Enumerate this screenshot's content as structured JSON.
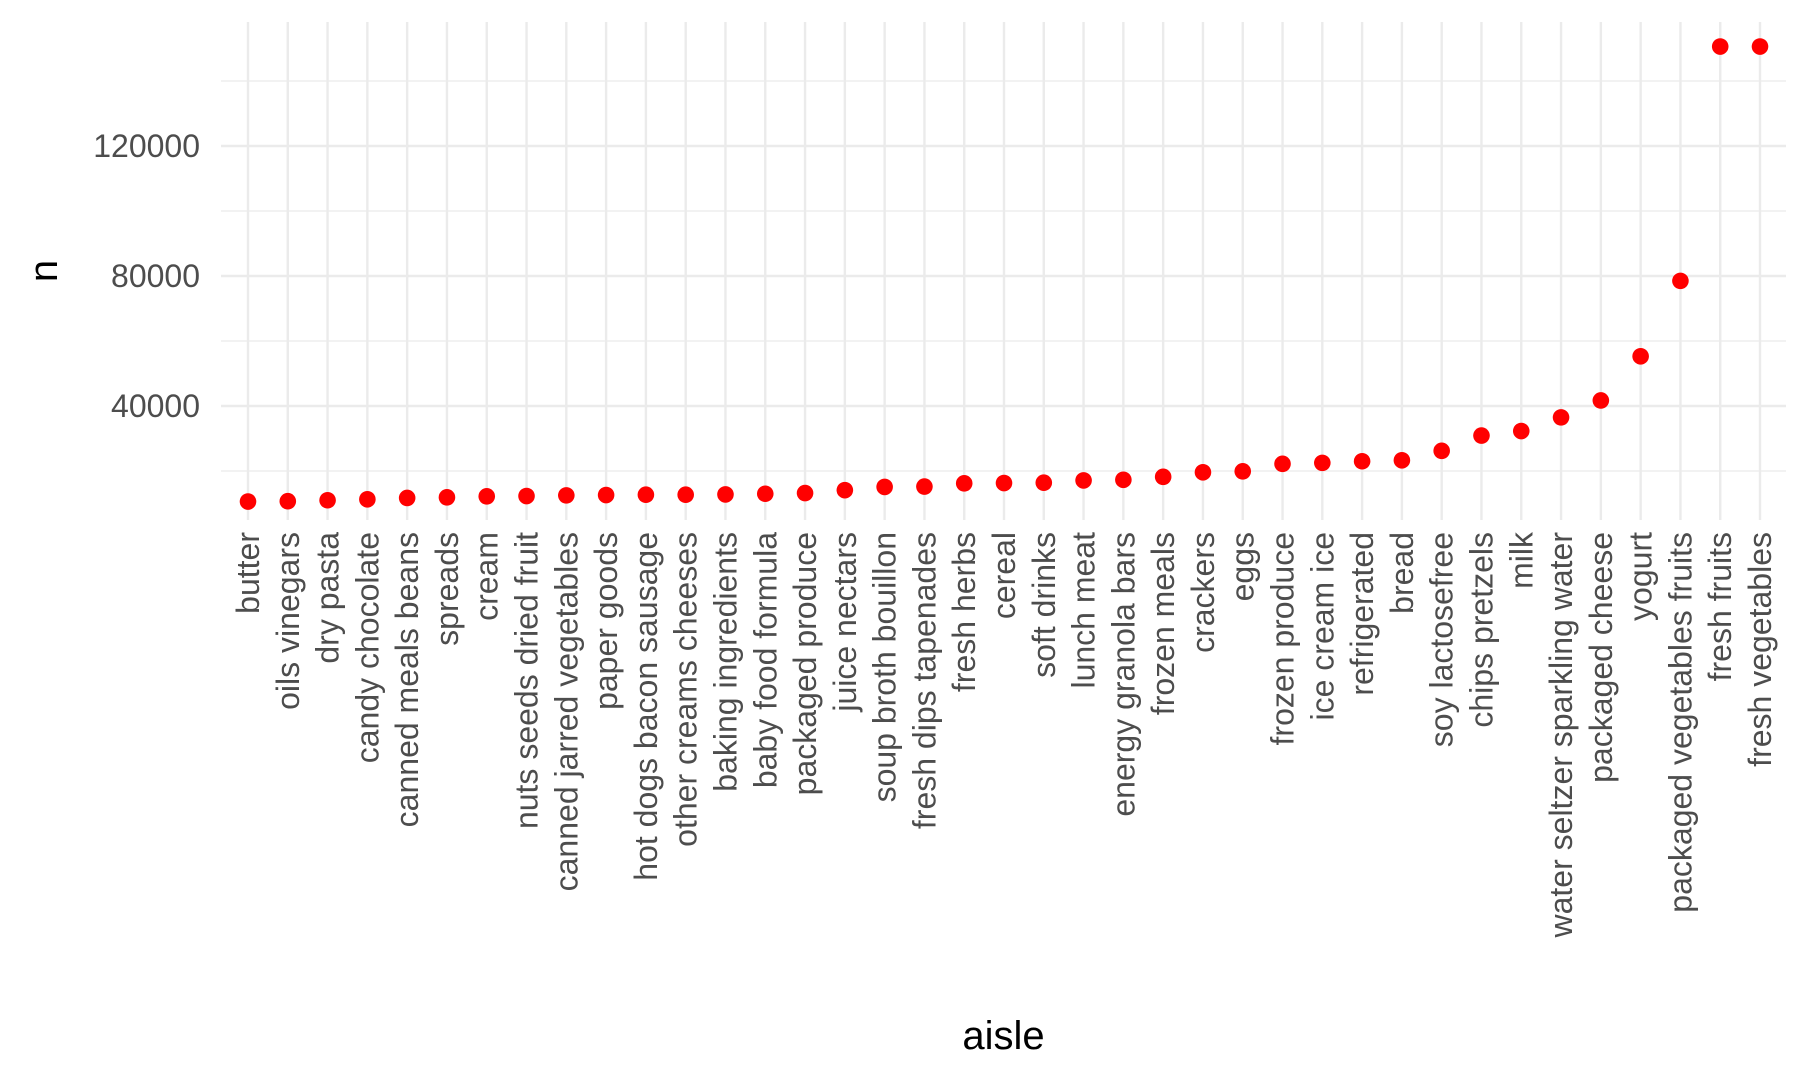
{
  "chart_data": {
    "type": "scatter",
    "title": "",
    "xlabel": "aisle",
    "ylabel": "n",
    "point_color": "#ff0000",
    "grid": true,
    "legend": "none",
    "ylim": [
      8000,
      154000
    ],
    "yticks": [
      40000,
      80000,
      120000
    ],
    "categories": [
      "butter",
      "oils vinegars",
      "dry pasta",
      "candy chocolate",
      "canned meals beans",
      "spreads",
      "cream",
      "nuts seeds dried fruit",
      "canned jarred vegetables",
      "paper goods",
      "hot dogs bacon sausage",
      "other creams cheeses",
      "baking ingredients",
      "baby food formula",
      "packaged produce",
      "juice nectars",
      "soup broth bouillon",
      "fresh dips tapenades",
      "fresh herbs",
      "cereal",
      "soft drinks",
      "lunch meat",
      "energy granola bars",
      "frozen meals",
      "crackers",
      "eggs",
      "frozen produce",
      "ice cream ice",
      "refrigerated",
      "bread",
      "soy lactosefree",
      "chips pretzels",
      "milk",
      "water seltzer sparkling water",
      "packaged cheese",
      "yogurt",
      "packaged vegetables fruits",
      "fresh fruits",
      "fresh vegetables"
    ],
    "values": [
      10600,
      10700,
      11000,
      11300,
      11700,
      11900,
      12200,
      12300,
      12500,
      12600,
      12700,
      12700,
      12800,
      13000,
      13200,
      14100,
      15100,
      15200,
      16200,
      16300,
      16400,
      17100,
      17300,
      18200,
      19600,
      19900,
      22200,
      22500,
      23000,
      23300,
      26200,
      30900,
      32300,
      36500,
      41700,
      55300,
      78500,
      150600,
      150600
    ]
  }
}
